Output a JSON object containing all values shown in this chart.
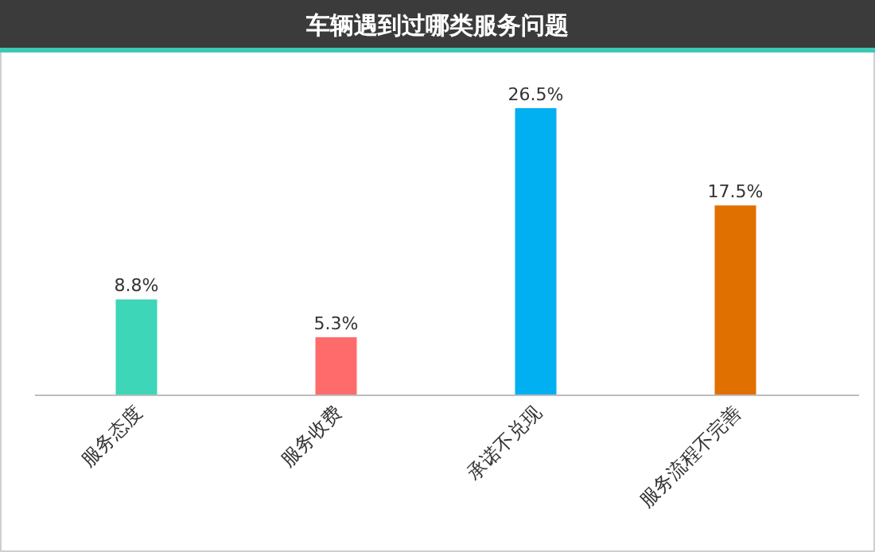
{
  "chart_data": {
    "type": "bar",
    "title": "车辆遇到过哪类服务问题",
    "categories": [
      "服务态度",
      "服务收费",
      "承诺不兑现",
      "服务流程不完善"
    ],
    "values": [
      8.8,
      5.3,
      26.5,
      17.5
    ],
    "colors": [
      "#3dd6b8",
      "#ff6b6b",
      "#00b0f0",
      "#e07000"
    ],
    "value_labels": [
      "8.8%",
      "5.3%",
      "26.5%",
      "17.5%"
    ]
  }
}
